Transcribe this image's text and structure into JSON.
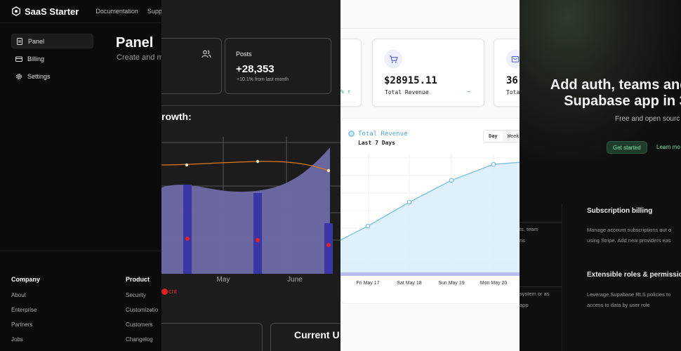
{
  "saas": {
    "brand": "SaaS Starter",
    "nav": [
      "Documentation",
      "Suppor"
    ],
    "sidebar": [
      {
        "label": "Panel",
        "icon": "document-icon"
      },
      {
        "label": "Billing",
        "icon": "credit-card-icon"
      },
      {
        "label": "Settings",
        "icon": "gear-icon"
      }
    ],
    "title": "Panel",
    "subtitle": "Create and m",
    "footer": {
      "company": {
        "title": "Company",
        "links": [
          "About",
          "Enterprise",
          "Partners",
          "Jobs"
        ]
      },
      "product": {
        "title": "Product",
        "links": [
          "Security",
          "Customizatio",
          "Customers",
          "Changelog"
        ]
      }
    }
  },
  "dark_dashboard": {
    "posts_label": "Posts",
    "posts_value": "+28,353",
    "posts_delta": "+10.1% from last month",
    "chart_title": "rowth:",
    "legend_label": "cnt",
    "current_title": "Current U",
    "colors": {
      "area": "#6e6aa8",
      "bars": "#3b36a6",
      "line": "#e07a1a",
      "dots": "#e02424"
    }
  },
  "revenue": {
    "left_pct": "% ↑",
    "cart_icon": "shopping-cart-icon",
    "value": "$28915.11",
    "label": "Total Revenue",
    "trend": "~",
    "right_value": "36",
    "right_label": "Tota",
    "box_icon": "box-icon",
    "series_name": "Total Revenue",
    "series_sub": "Last 7 Days",
    "range": [
      "Day",
      "Week"
    ],
    "colors": {
      "line": "#7cc0e6",
      "fill": "#d8eefa"
    }
  },
  "supabase": {
    "hero_line1": "Add auth, teams and b",
    "hero_line2": "Supabase app in 3",
    "subtitle": "Free and open sourc",
    "cta_primary": "Get started",
    "cta_secondary": "Learn mo",
    "fragments": [
      "ts, team",
      "ns",
      "system or as",
      "app"
    ],
    "features": [
      {
        "title": "Subscription billing",
        "lines": [
          "Manage account subscriptions out o",
          "using Stripe. Add new providers eas"
        ]
      },
      {
        "title": "Extensible roles & permissio",
        "lines": [
          "Leverage Supabase RLS policies to",
          "access to data by user role"
        ]
      }
    ],
    "colors": {
      "accent": "#7ee2a8"
    }
  },
  "chart_data": [
    {
      "type": "area",
      "x_tick_labels": [
        "May",
        "June"
      ],
      "legend": [
        "cnt"
      ],
      "series": [
        {
          "name": "cnt",
          "values": [
            355,
            345,
            357,
            358,
            349
          ]
        }
      ]
    },
    {
      "type": "area",
      "title": "Total Revenue",
      "subtitle": "Last 7 Days",
      "categories": [
        "Fri May 17",
        "Sat May 18",
        "Sun May 19",
        "Mon May 20"
      ],
      "series": [
        {
          "name": "Total Revenue",
          "values": [
            12000,
            18000,
            23500,
            27500
          ]
        }
      ]
    }
  ]
}
